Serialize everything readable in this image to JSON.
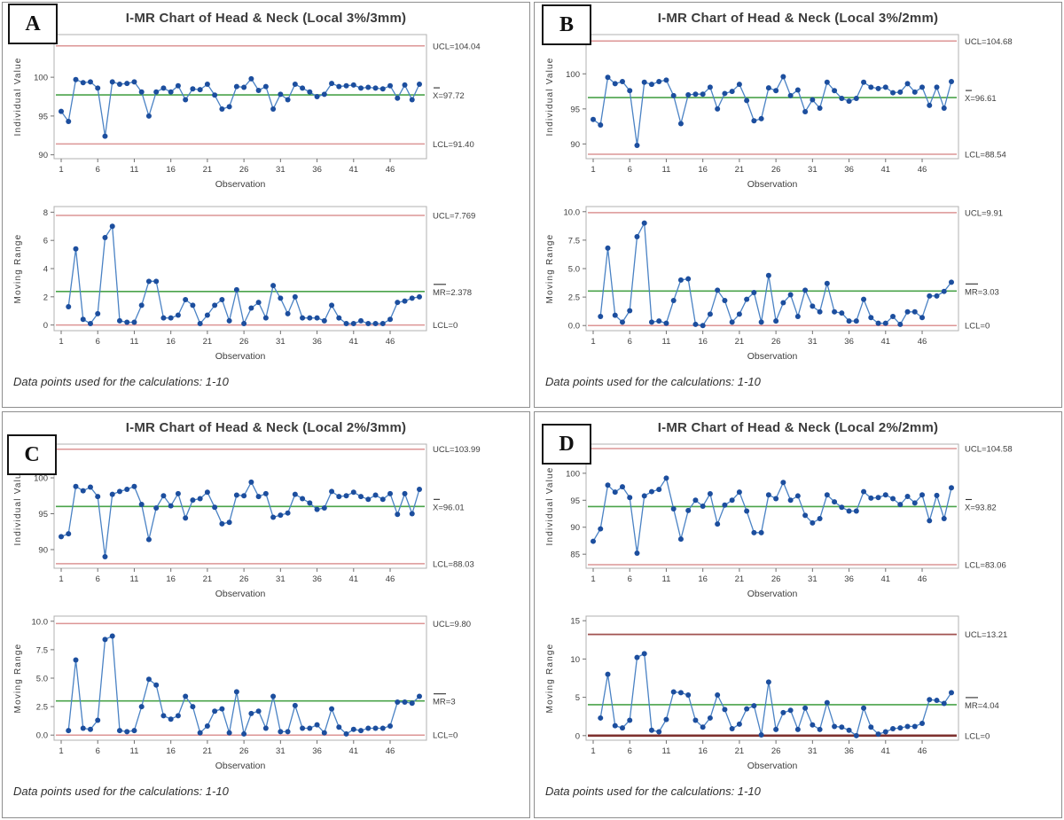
{
  "colors": {
    "limit_line": "#dc9595",
    "limit_line_dark": "#a05250",
    "limit_line_darker": "#7e312f",
    "center_line": "#4aa34a",
    "series_line": "#4a82c4",
    "marker": "#1c4e9e",
    "plot_border": "#b0b0b0",
    "tick": "#707070",
    "text": "#3d3d3d"
  },
  "observation_ticks": [
    1,
    6,
    11,
    16,
    21,
    26,
    31,
    36,
    41,
    46
  ],
  "chart_data": [
    {
      "panel": "A",
      "type": "line",
      "title": "I-MR Chart of Head & Neck (Local 3%/3mm)",
      "footnote": "Data points used for the calculations: 1-10",
      "xlabel": "Observation",
      "individual": {
        "ylabel": "Individual Value",
        "ylim": [
          89.5,
          105.5
        ],
        "yticks": [
          90,
          95,
          100,
          105
        ],
        "ytick_labels": [
          "90",
          "95",
          "100",
          "105"
        ],
        "ucl": 104.04,
        "center": 97.72,
        "lcl": 91.4,
        "ucl_label": "UCL=104.04",
        "center_label": "X=97.72",
        "lcl_label": "LCL=91.40",
        "center_bar_w": 7,
        "values": [
          95.6,
          94.3,
          99.7,
          99.3,
          99.4,
          98.6,
          92.4,
          99.4,
          99.1,
          99.2,
          99.4,
          98.1,
          95.0,
          98.1,
          98.6,
          98.1,
          98.9,
          97.1,
          98.5,
          98.4,
          99.1,
          97.7,
          95.9,
          96.2,
          98.8,
          98.7,
          99.8,
          98.3,
          98.8,
          95.9,
          97.8,
          97.1,
          99.1,
          98.6,
          98.1,
          97.5,
          97.8,
          99.2,
          98.8,
          98.9,
          99.0,
          98.6,
          98.7,
          98.6,
          98.5,
          98.9,
          97.3,
          99.0,
          97.1,
          99.1
        ]
      },
      "moving_range": {
        "ylabel": "Moving Range",
        "ylim": [
          -0.4,
          8.4
        ],
        "yticks": [
          0,
          2,
          4,
          6,
          8
        ],
        "ytick_labels": [
          "0",
          "2",
          "4",
          "6",
          "8"
        ],
        "ucl": 7.769,
        "center": 2.378,
        "lcl": 0,
        "ucl_label": "UCL=7.769",
        "center_label": "MR=2.378",
        "lcl_label": "LCL=0",
        "center_bar_w": 14,
        "x_start": 2,
        "values": [
          1.3,
          5.4,
          0.4,
          0.1,
          0.8,
          6.2,
          7.0,
          0.3,
          0.2,
          0.2,
          1.4,
          3.1,
          3.1,
          0.5,
          0.5,
          0.7,
          1.8,
          1.4,
          0.1,
          0.7,
          1.4,
          1.8,
          0.3,
          2.5,
          0.1,
          1.2,
          1.6,
          0.5,
          2.8,
          1.9,
          0.8,
          2.0,
          0.5,
          0.5,
          0.5,
          0.3,
          1.4,
          0.5,
          0.1,
          0.1,
          0.3,
          0.1,
          0.1,
          0.1,
          0.4,
          1.6,
          1.7,
          1.9,
          2.0
        ]
      }
    },
    {
      "panel": "B",
      "type": "line",
      "title": "I-MR Chart of Head & Neck (Local 3%/2mm)",
      "footnote": "Data points used for the calculations: 1-10",
      "xlabel": "Observation",
      "individual": {
        "ylabel": "Individual Value",
        "ylim": [
          87.9,
          105.6
        ],
        "yticks": [
          90,
          95,
          100,
          105
        ],
        "ytick_labels": [
          "90",
          "95",
          "100",
          "105"
        ],
        "ucl": 104.68,
        "center": 96.61,
        "lcl": 88.54,
        "ucl_label": "UCL=104.68",
        "center_label": "X=96.61",
        "lcl_label": "LCL=88.54",
        "center_bar_w": 7,
        "values": [
          93.5,
          92.7,
          99.5,
          98.6,
          98.9,
          97.6,
          89.8,
          98.8,
          98.5,
          98.9,
          99.1,
          96.9,
          92.9,
          97.0,
          97.1,
          97.1,
          98.1,
          95.0,
          97.2,
          97.5,
          98.5,
          96.2,
          93.3,
          93.6,
          98.0,
          97.6,
          99.6,
          96.9,
          97.7,
          94.6,
          96.3,
          95.1,
          98.8,
          97.6,
          96.5,
          96.1,
          96.5,
          98.8,
          98.1,
          97.9,
          98.1,
          97.3,
          97.4,
          98.6,
          97.4,
          98.1,
          95.5,
          98.1,
          95.1,
          98.9
        ]
      },
      "moving_range": {
        "ylabel": "Moving Range",
        "ylim": [
          -0.45,
          10.45
        ],
        "yticks": [
          0,
          2.5,
          5,
          7.5,
          10
        ],
        "ytick_labels": [
          "0.0",
          "2.5",
          "5.0",
          "7.5",
          "10.0"
        ],
        "ucl": 9.91,
        "center": 3.03,
        "lcl": 0,
        "ucl_label": "UCL=9.91",
        "center_label": "MR=3.03",
        "lcl_label": "LCL=0",
        "center_bar_w": 14,
        "x_start": 2,
        "values": [
          0.8,
          6.8,
          0.9,
          0.3,
          1.3,
          7.8,
          9.0,
          0.3,
          0.4,
          0.2,
          2.2,
          4.0,
          4.1,
          0.1,
          0.0,
          1.0,
          3.1,
          2.2,
          0.3,
          1.0,
          2.3,
          2.9,
          0.3,
          4.4,
          0.4,
          2.0,
          2.7,
          0.8,
          3.1,
          1.7,
          1.2,
          3.7,
          1.2,
          1.1,
          0.4,
          0.4,
          2.3,
          0.7,
          0.2,
          0.2,
          0.8,
          0.1,
          1.2,
          1.2,
          0.7,
          2.6,
          2.6,
          3.0,
          3.8
        ]
      }
    },
    {
      "panel": "C",
      "type": "line",
      "title": "I-MR Chart of Head & Neck (Local 2%/3mm)",
      "footnote": "Data points used for the calculations: 1-10",
      "xlabel": "Observation",
      "individual": {
        "ylabel": "Individual Value",
        "ylim": [
          87.4,
          104.7
        ],
        "yticks": [
          90,
          95,
          100
        ],
        "ytick_labels": [
          "90",
          "95",
          "100"
        ],
        "ucl": 103.99,
        "center": 96.01,
        "lcl": 88.03,
        "ucl_label": "UCL=103.99",
        "center_label": "X=96.01",
        "lcl_label": "LCL=88.03",
        "center_bar_w": 7,
        "values": [
          91.8,
          92.2,
          98.8,
          98.2,
          98.7,
          97.4,
          89.0,
          97.7,
          98.1,
          98.4,
          98.8,
          96.3,
          91.4,
          95.8,
          97.5,
          96.1,
          97.8,
          94.4,
          96.9,
          97.1,
          98.0,
          95.9,
          93.6,
          93.8,
          97.6,
          97.5,
          99.4,
          97.4,
          97.8,
          94.5,
          94.8,
          95.1,
          97.7,
          97.1,
          96.5,
          95.6,
          95.8,
          98.1,
          97.4,
          97.5,
          98.0,
          97.4,
          97.0,
          97.6,
          97.0,
          97.8,
          94.9,
          97.8,
          95.0,
          98.4
        ]
      },
      "moving_range": {
        "ylabel": "Moving Range",
        "ylim": [
          -0.45,
          10.45
        ],
        "yticks": [
          0,
          2.5,
          5,
          7.5,
          10
        ],
        "ytick_labels": [
          "0.0",
          "2.5",
          "5.0",
          "7.5",
          "10.0"
        ],
        "ucl": 9.8,
        "center": 3,
        "lcl": 0,
        "ucl_label": "UCL=9.80",
        "center_label": "MR=3",
        "lcl_label": "LCL=0",
        "center_bar_w": 14,
        "x_start": 2,
        "values": [
          0.4,
          6.6,
          0.6,
          0.5,
          1.3,
          8.4,
          8.7,
          0.4,
          0.3,
          0.4,
          2.5,
          4.9,
          4.4,
          1.7,
          1.4,
          1.7,
          3.4,
          2.5,
          0.2,
          0.8,
          2.1,
          2.3,
          0.2,
          3.8,
          0.1,
          1.9,
          2.1,
          0.6,
          3.4,
          0.3,
          0.3,
          2.6,
          0.6,
          0.6,
          0.9,
          0.2,
          2.3,
          0.7,
          0.1,
          0.5,
          0.4,
          0.6,
          0.6,
          0.6,
          0.8,
          2.9,
          2.9,
          2.8,
          3.4
        ]
      }
    },
    {
      "panel": "D",
      "type": "line",
      "title": "I-MR Chart of Head & Neck (Local 2%/2mm)",
      "footnote": "Data points used for the calculations: 1-10",
      "xlabel": "Observation",
      "individual": {
        "ylabel": "Individual Value",
        "ylim": [
          82.4,
          105.4
        ],
        "yticks": [
          85,
          90,
          95,
          100
        ],
        "ytick_labels": [
          "85",
          "90",
          "95",
          "100"
        ],
        "ucl": 104.58,
        "center": 93.82,
        "lcl": 83.06,
        "ucl_label": "UCL=104.58",
        "center_label": "X=93.82",
        "lcl_label": "LCL=83.06",
        "center_bar_w": 7,
        "values": [
          87.4,
          89.7,
          97.8,
          96.5,
          97.5,
          95.5,
          85.2,
          95.8,
          96.6,
          97.0,
          99.1,
          93.4,
          87.8,
          93.1,
          95.0,
          93.9,
          96.2,
          90.6,
          94.1,
          95.0,
          96.5,
          93.0,
          89.0,
          89.0,
          96.0,
          95.3,
          98.3,
          95.0,
          95.8,
          92.2,
          90.8,
          91.6,
          96.0,
          94.7,
          93.7,
          93.0,
          93.0,
          96.6,
          95.4,
          95.5,
          96.0,
          95.3,
          94.2,
          95.7,
          94.5,
          96.0,
          91.2,
          95.9,
          91.6,
          97.3
        ]
      },
      "moving_range": {
        "ylabel": "Moving Range",
        "ylim": [
          -0.6,
          15.6
        ],
        "yticks": [
          0,
          5,
          10,
          15
        ],
        "ytick_labels": [
          "0",
          "5",
          "10",
          "15"
        ],
        "ucl": 13.21,
        "center": 4.04,
        "lcl": 0,
        "ucl_label": "UCL=13.21",
        "center_label": "MR=4.04",
        "lcl_label": "LCL=0",
        "center_bar_w": 14,
        "ucl_dark": true,
        "lcl_dark": true,
        "x_start": 2,
        "values": [
          2.3,
          8.0,
          1.3,
          1.0,
          2.0,
          10.2,
          10.7,
          0.7,
          0.5,
          2.1,
          5.7,
          5.6,
          5.3,
          2.0,
          1.1,
          2.3,
          5.3,
          3.4,
          0.9,
          1.5,
          3.5,
          3.9,
          0.1,
          7.0,
          0.8,
          3.0,
          3.3,
          0.8,
          3.6,
          1.4,
          0.8,
          4.3,
          1.2,
          1.1,
          0.7,
          0.0,
          3.6,
          1.1,
          0.2,
          0.5,
          0.9,
          1.0,
          1.2,
          1.2,
          1.6,
          4.7,
          4.6,
          4.2,
          5.6
        ]
      }
    }
  ]
}
